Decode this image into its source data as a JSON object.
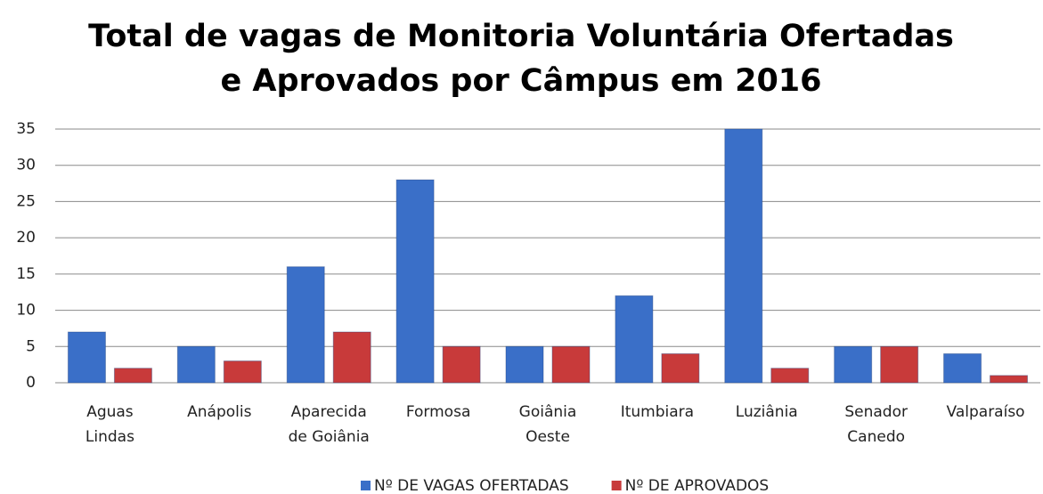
{
  "chart_data": {
    "type": "bar",
    "title": [
      "Total de vagas de Monitoria Voluntária Ofertadas",
      "e Aprovados por Câmpus em 2016"
    ],
    "categories": [
      "Aguas Lindas",
      "Anápolis",
      "Aparecida de Goiânia",
      "Formosa",
      "Goiânia Oeste",
      "Itumbiara",
      "Luziânia",
      "Senador Canedo",
      "Valparaíso"
    ],
    "series": [
      {
        "name": "Nº DE VAGAS OFERTADAS",
        "color": "#3a6fc8",
        "values": [
          7,
          5,
          16,
          28,
          5,
          12,
          35,
          5,
          4
        ]
      },
      {
        "name": "Nº DE APROVADOS",
        "color": "#c83a3a",
        "values": [
          2,
          3,
          7,
          5,
          5,
          4,
          2,
          5,
          1
        ]
      }
    ],
    "ylim": [
      0,
      35
    ],
    "yticks": [
      0,
      5,
      10,
      15,
      20,
      25,
      30,
      35
    ],
    "grid": true,
    "legend": "bottom"
  }
}
